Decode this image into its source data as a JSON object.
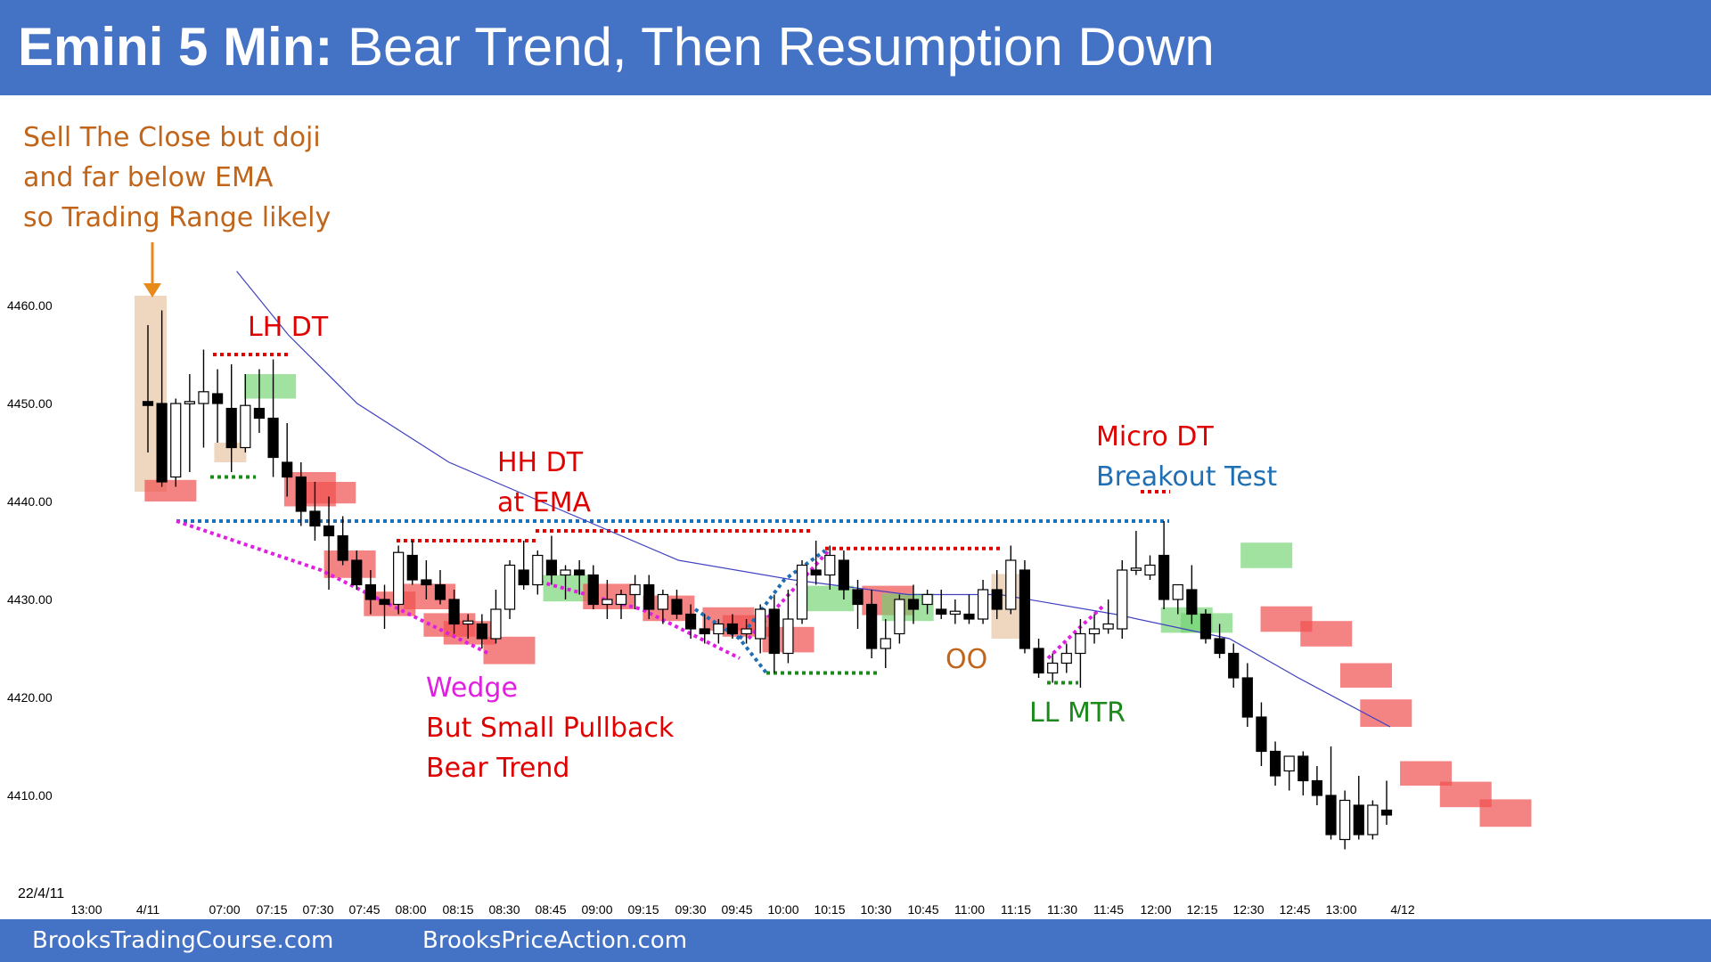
{
  "header": {
    "title_bold": "Emini 5 Min:",
    "title_rest": "Bear Trend, Then Resumption Down",
    "color": "#4472c4"
  },
  "footer": {
    "left_link": "BrooksTradingCourse.com",
    "right_link": "BrooksPriceAction.com"
  },
  "chart_data": {
    "type": "candlestick",
    "date_label": "22/4/11",
    "y_ticks": [
      "4410.00",
      "4420.00",
      "4430.00",
      "4440.00",
      "4450.00",
      "4460.00"
    ],
    "x_ticks": [
      "13:00",
      "4/11",
      "07:00",
      "07:15",
      "07:30",
      "07:45",
      "08:00",
      "08:15",
      "08:30",
      "08:45",
      "09:00",
      "09:15",
      "09:30",
      "09:45",
      "10:00",
      "10:15",
      "10:30",
      "10:45",
      "11:00",
      "11:15",
      "11:30",
      "11:45",
      "12:00",
      "12:15",
      "12:30",
      "12:45",
      "13:00",
      "4/12"
    ],
    "ylim": [
      4401,
      4468
    ],
    "colors": {
      "bull_body": "#ffffff",
      "bear_body": "#000000",
      "ema": "#4040c0",
      "red_text": "#e00000",
      "green_text": "#1a8a1a",
      "blue_text": "#1f6fb5",
      "orange_text": "#c0651a",
      "magenta_text": "#e020e0"
    },
    "bars": [
      {
        "o": 4450.2,
        "h": 4458.0,
        "l": 4445.0,
        "c": 4449.8
      },
      {
        "o": 4450.0,
        "h": 4459.5,
        "l": 4441.5,
        "c": 4442.0
      },
      {
        "o": 4442.5,
        "h": 4450.5,
        "l": 4441.5,
        "c": 4450.0
      },
      {
        "o": 4450.0,
        "h": 4453.0,
        "l": 4443.0,
        "c": 4450.2
      },
      {
        "o": 4450.0,
        "h": 4455.5,
        "l": 4445.5,
        "c": 4451.2
      },
      {
        "o": 4451.0,
        "h": 4453.5,
        "l": 4446.0,
        "c": 4450.0
      },
      {
        "o": 4449.5,
        "h": 4454.0,
        "l": 4443.0,
        "c": 4445.5
      },
      {
        "o": 4445.5,
        "h": 4453.0,
        "l": 4445.0,
        "c": 4449.8
      },
      {
        "o": 4449.5,
        "h": 4453.5,
        "l": 4447.0,
        "c": 4448.5
      },
      {
        "o": 4448.5,
        "h": 4454.5,
        "l": 4442.5,
        "c": 4444.5
      },
      {
        "o": 4444.0,
        "h": 4448.0,
        "l": 4440.5,
        "c": 4442.5
      },
      {
        "o": 4442.5,
        "h": 4444.0,
        "l": 4437.5,
        "c": 4439.0
      },
      {
        "o": 4439.0,
        "h": 4442.0,
        "l": 4436.0,
        "c": 4437.5
      },
      {
        "o": 4437.5,
        "h": 4440.5,
        "l": 4431.0,
        "c": 4436.5
      },
      {
        "o": 4436.5,
        "h": 4438.5,
        "l": 4433.5,
        "c": 4434.0
      },
      {
        "o": 4434.0,
        "h": 4435.0,
        "l": 4431.0,
        "c": 4431.5
      },
      {
        "o": 4431.5,
        "h": 4433.0,
        "l": 4428.5,
        "c": 4430.0
      },
      {
        "o": 4430.0,
        "h": 4431.5,
        "l": 4427.0,
        "c": 4429.5
      },
      {
        "o": 4429.5,
        "h": 4435.5,
        "l": 4428.5,
        "c": 4434.8
      },
      {
        "o": 4434.5,
        "h": 4436.0,
        "l": 4431.5,
        "c": 4432.0
      },
      {
        "o": 4432.0,
        "h": 4434.0,
        "l": 4430.0,
        "c": 4431.5
      },
      {
        "o": 4431.5,
        "h": 4433.0,
        "l": 4429.5,
        "c": 4430.0
      },
      {
        "o": 4430.0,
        "h": 4431.0,
        "l": 4426.5,
        "c": 4427.5
      },
      {
        "o": 4427.5,
        "h": 4428.5,
        "l": 4426.0,
        "c": 4427.8
      },
      {
        "o": 4427.5,
        "h": 4428.5,
        "l": 4425.0,
        "c": 4426.0
      },
      {
        "o": 4426.0,
        "h": 4431.0,
        "l": 4425.5,
        "c": 4429.0
      },
      {
        "o": 4429.0,
        "h": 4434.0,
        "l": 4428.0,
        "c": 4433.5
      },
      {
        "o": 4433.0,
        "h": 4436.0,
        "l": 4431.0,
        "c": 4431.5
      },
      {
        "o": 4431.5,
        "h": 4435.0,
        "l": 4430.5,
        "c": 4434.5
      },
      {
        "o": 4434.0,
        "h": 4436.5,
        "l": 4431.5,
        "c": 4432.5
      },
      {
        "o": 4432.5,
        "h": 4433.5,
        "l": 4430.0,
        "c": 4433.0
      },
      {
        "o": 4433.0,
        "h": 4434.0,
        "l": 4430.5,
        "c": 4432.5
      },
      {
        "o": 4432.5,
        "h": 4433.5,
        "l": 4429.0,
        "c": 4429.5
      },
      {
        "o": 4429.5,
        "h": 4432.0,
        "l": 4428.0,
        "c": 4430.0
      },
      {
        "o": 4429.5,
        "h": 4431.0,
        "l": 4428.0,
        "c": 4430.5
      },
      {
        "o": 4430.5,
        "h": 4432.5,
        "l": 4429.0,
        "c": 4431.5
      },
      {
        "o": 4431.5,
        "h": 4432.5,
        "l": 4428.0,
        "c": 4429.0
      },
      {
        "o": 4429.0,
        "h": 4431.0,
        "l": 4427.5,
        "c": 4430.5
      },
      {
        "o": 4430.0,
        "h": 4431.0,
        "l": 4428.0,
        "c": 4428.5
      },
      {
        "o": 4428.5,
        "h": 4429.5,
        "l": 4426.0,
        "c": 4427.0
      },
      {
        "o": 4427.0,
        "h": 4428.5,
        "l": 4425.5,
        "c": 4426.5
      },
      {
        "o": 4426.5,
        "h": 4428.0,
        "l": 4425.5,
        "c": 4427.5
      },
      {
        "o": 4427.5,
        "h": 4428.5,
        "l": 4426.0,
        "c": 4426.5
      },
      {
        "o": 4426.5,
        "h": 4428.0,
        "l": 4425.5,
        "c": 4427.0
      },
      {
        "o": 4426.0,
        "h": 4429.5,
        "l": 4424.5,
        "c": 4429.0
      },
      {
        "o": 4429.0,
        "h": 4430.5,
        "l": 4422.5,
        "c": 4424.5
      },
      {
        "o": 4424.5,
        "h": 4431.0,
        "l": 4423.5,
        "c": 4428.0
      },
      {
        "o": 4428.0,
        "h": 4434.0,
        "l": 4427.5,
        "c": 4433.5
      },
      {
        "o": 4433.0,
        "h": 4436.0,
        "l": 4431.5,
        "c": 4432.5
      },
      {
        "o": 4432.5,
        "h": 4435.5,
        "l": 4431.0,
        "c": 4434.5
      },
      {
        "o": 4434.0,
        "h": 4435.0,
        "l": 4430.0,
        "c": 4431.0
      },
      {
        "o": 4431.0,
        "h": 4432.0,
        "l": 4427.0,
        "c": 4429.5
      },
      {
        "o": 4429.5,
        "h": 4431.0,
        "l": 4424.0,
        "c": 4425.0
      },
      {
        "o": 4425.0,
        "h": 4428.0,
        "l": 4423.0,
        "c": 4426.0
      },
      {
        "o": 4426.5,
        "h": 4430.5,
        "l": 4425.5,
        "c": 4430.0
      },
      {
        "o": 4430.0,
        "h": 4431.5,
        "l": 4427.5,
        "c": 4429.0
      },
      {
        "o": 4429.5,
        "h": 4431.0,
        "l": 4428.5,
        "c": 4430.5
      },
      {
        "o": 4429.0,
        "h": 4431.0,
        "l": 4428.0,
        "c": 4428.5
      },
      {
        "o": 4428.5,
        "h": 4430.0,
        "l": 4427.5,
        "c": 4428.8
      },
      {
        "o": 4428.5,
        "h": 4430.5,
        "l": 4427.5,
        "c": 4428.0
      },
      {
        "o": 4428.0,
        "h": 4432.0,
        "l": 4427.5,
        "c": 4431.0
      },
      {
        "o": 4431.0,
        "h": 4433.0,
        "l": 4428.0,
        "c": 4429.0
      },
      {
        "o": 4429.0,
        "h": 4435.5,
        "l": 4428.5,
        "c": 4434.0
      },
      {
        "o": 4433.0,
        "h": 4434.0,
        "l": 4424.5,
        "c": 4425.0
      },
      {
        "o": 4425.0,
        "h": 4426.0,
        "l": 4422.0,
        "c": 4422.5
      },
      {
        "o": 4422.5,
        "h": 4424.5,
        "l": 4421.5,
        "c": 4423.5
      },
      {
        "o": 4423.5,
        "h": 4425.5,
        "l": 4422.5,
        "c": 4424.5
      },
      {
        "o": 4424.5,
        "h": 4428.0,
        "l": 4421.0,
        "c": 4426.5
      },
      {
        "o": 4426.5,
        "h": 4428.5,
        "l": 4425.5,
        "c": 4427.0
      },
      {
        "o": 4427.0,
        "h": 4430.0,
        "l": 4426.5,
        "c": 4427.5
      },
      {
        "o": 4427.0,
        "h": 4434.0,
        "l": 4426.0,
        "c": 4433.0
      },
      {
        "o": 4433.0,
        "h": 4437.0,
        "l": 4432.5,
        "c": 4433.2
      },
      {
        "o": 4432.5,
        "h": 4434.5,
        "l": 4432.0,
        "c": 4433.5
      },
      {
        "o": 4434.5,
        "h": 4438.0,
        "l": 4429.0,
        "c": 4430.0
      },
      {
        "o": 4430.0,
        "h": 4431.5,
        "l": 4428.5,
        "c": 4431.5
      },
      {
        "o": 4431.0,
        "h": 4433.5,
        "l": 4427.5,
        "c": 4428.5
      },
      {
        "o": 4428.5,
        "h": 4429.0,
        "l": 4425.5,
        "c": 4426.0
      },
      {
        "o": 4426.0,
        "h": 4427.5,
        "l": 4424.0,
        "c": 4424.5
      },
      {
        "o": 4424.5,
        "h": 4425.5,
        "l": 4421.0,
        "c": 4422.0
      },
      {
        "o": 4422.0,
        "h": 4423.5,
        "l": 4417.0,
        "c": 4418.0
      },
      {
        "o": 4418.0,
        "h": 4419.5,
        "l": 4413.0,
        "c": 4414.5
      },
      {
        "o": 4414.5,
        "h": 4415.5,
        "l": 4411.0,
        "c": 4412.0
      },
      {
        "o": 4412.5,
        "h": 4414.0,
        "l": 4410.5,
        "c": 4414.0
      },
      {
        "o": 4414.0,
        "h": 4414.5,
        "l": 4410.0,
        "c": 4411.5
      },
      {
        "o": 4411.5,
        "h": 4413.0,
        "l": 4409.0,
        "c": 4410.0
      },
      {
        "o": 4410.0,
        "h": 4415.0,
        "l": 4405.5,
        "c": 4406.0
      },
      {
        "o": 4405.5,
        "h": 4410.5,
        "l": 4404.5,
        "c": 4409.5
      },
      {
        "o": 4409.0,
        "h": 4412.0,
        "l": 4405.5,
        "c": 4406.0
      },
      {
        "o": 4406.0,
        "h": 4409.5,
        "l": 4405.5,
        "c": 4409.0
      },
      {
        "o": 4408.5,
        "h": 4411.5,
        "l": 4407.0,
        "c": 4408.0
      }
    ],
    "ema": [
      [
        7.5,
        4463.5
      ],
      [
        12,
        4457
      ],
      [
        18,
        4450
      ],
      [
        26,
        4444
      ],
      [
        36,
        4439
      ],
      [
        46,
        4434
      ],
      [
        56,
        4432
      ],
      [
        66,
        4430.5
      ],
      [
        74,
        4430.5
      ],
      [
        84,
        4428.5
      ],
      [
        94,
        4426
      ],
      [
        100,
        4422
      ],
      [
        108,
        4417
      ]
    ],
    "annotations": [
      {
        "lines": [
          "Sell The Close but doji",
          "and far below EMA",
          "so Trading Range likely"
        ],
        "color": "orange_text"
      },
      {
        "lines": [
          "LH DT"
        ],
        "color": "red_text"
      },
      {
        "lines": [
          "HH DT",
          "at EMA"
        ],
        "color": "red_text"
      },
      {
        "lines": [
          "Micro DT"
        ],
        "color": "red_text"
      },
      {
        "lines": [
          "Breakout Test"
        ],
        "color": "blue_text"
      },
      {
        "lines": [
          "Wedge"
        ],
        "color": "magenta_text"
      },
      {
        "lines": [
          "But Small Pullback",
          "Bear Trend"
        ],
        "color": "red_text"
      },
      {
        "lines": [
          "OO"
        ],
        "color": "orange_text"
      },
      {
        "lines": [
          "LL MTR"
        ],
        "color": "green_text"
      }
    ]
  }
}
